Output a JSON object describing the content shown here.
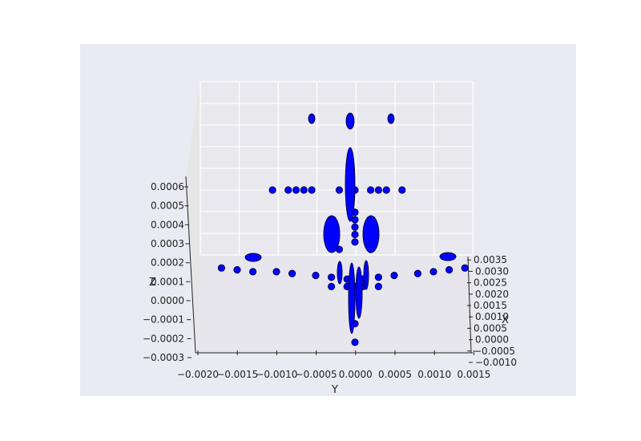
{
  "chart_data": {
    "type": "scatter",
    "projection": "3d",
    "xlabel": "X",
    "ylabel": "Y",
    "zlabel": "Z",
    "x_ticks": [
      "−0.0010",
      "−0.0005",
      "0.0000",
      "0.0005",
      "0.0010",
      "0.0015",
      "0.0020",
      "0.0025",
      "0.0030",
      "0.0035"
    ],
    "y_ticks": [
      "−0.0020",
      "−0.0015",
      "−0.0010",
      "−0.0005",
      "0.0000",
      "0.0005",
      "0.0010",
      "0.0015"
    ],
    "z_ticks": [
      "−0.0003",
      "−0.0002",
      "−0.0001",
      "0.0000",
      "0.0001",
      "0.0002",
      "0.0003",
      "0.0004",
      "0.0005",
      "0.0006"
    ],
    "ylim": [
      -0.002,
      0.0015
    ],
    "zlim": [
      -0.0003,
      0.00065
    ],
    "grid": true,
    "marker_color": "#0000ff",
    "marker_edge": "#000033",
    "background": "#eaeaf2",
    "points": [
      {
        "y": -0.00105,
        "z": 0.00062
      },
      {
        "y": -0.00085,
        "z": 0.00062
      },
      {
        "y": -0.00075,
        "z": 0.00062
      },
      {
        "y": -0.00065,
        "z": 0.00062
      },
      {
        "y": -0.00055,
        "z": 0.00062
      },
      {
        "y": -0.0002,
        "z": 0.00062
      },
      {
        "y": 0.0,
        "z": 0.00062
      },
      {
        "y": 0.0002,
        "z": 0.00062
      },
      {
        "y": 0.0003,
        "z": 0.00062
      },
      {
        "y": 0.0004,
        "z": 0.00062
      },
      {
        "y": 0.0006,
        "z": 0.00062
      },
      {
        "y": 0.0,
        "z": 0.0005
      },
      {
        "y": 0.0,
        "z": 0.00046
      },
      {
        "y": 0.0,
        "z": 0.00042
      },
      {
        "y": 0.0,
        "z": 0.00038
      },
      {
        "y": 0.0,
        "z": 0.00034
      },
      {
        "y": -0.0002,
        "z": 0.0003
      },
      {
        "y": 0.0002,
        "z": 0.0003
      },
      {
        "y": -0.0017,
        "z": 0.0002
      },
      {
        "y": -0.0015,
        "z": 0.00019
      },
      {
        "y": -0.0013,
        "z": 0.00018
      },
      {
        "y": -0.001,
        "z": 0.00018
      },
      {
        "y": -0.0008,
        "z": 0.00017
      },
      {
        "y": -0.0005,
        "z": 0.00016
      },
      {
        "y": -0.0003,
        "z": 0.00015
      },
      {
        "y": -0.0001,
        "z": 0.00014
      },
      {
        "y": 0.0001,
        "z": 0.00014
      },
      {
        "y": 0.0003,
        "z": 0.00015
      },
      {
        "y": 0.0005,
        "z": 0.00016
      },
      {
        "y": 0.0008,
        "z": 0.00017
      },
      {
        "y": 0.001,
        "z": 0.00018
      },
      {
        "y": 0.0012,
        "z": 0.00019
      },
      {
        "y": 0.0014,
        "z": 0.0002
      },
      {
        "y": -0.0003,
        "z": 0.0001
      },
      {
        "y": -0.0001,
        "z": 0.0001
      },
      {
        "y": 0.0,
        "z": 0.0001
      },
      {
        "y": 0.0001,
        "z": 0.0001
      },
      {
        "y": 0.0003,
        "z": 0.0001
      },
      {
        "y": 0.0,
        "z": -0.0001
      },
      {
        "y": 0.0,
        "z": -0.0002
      }
    ]
  }
}
